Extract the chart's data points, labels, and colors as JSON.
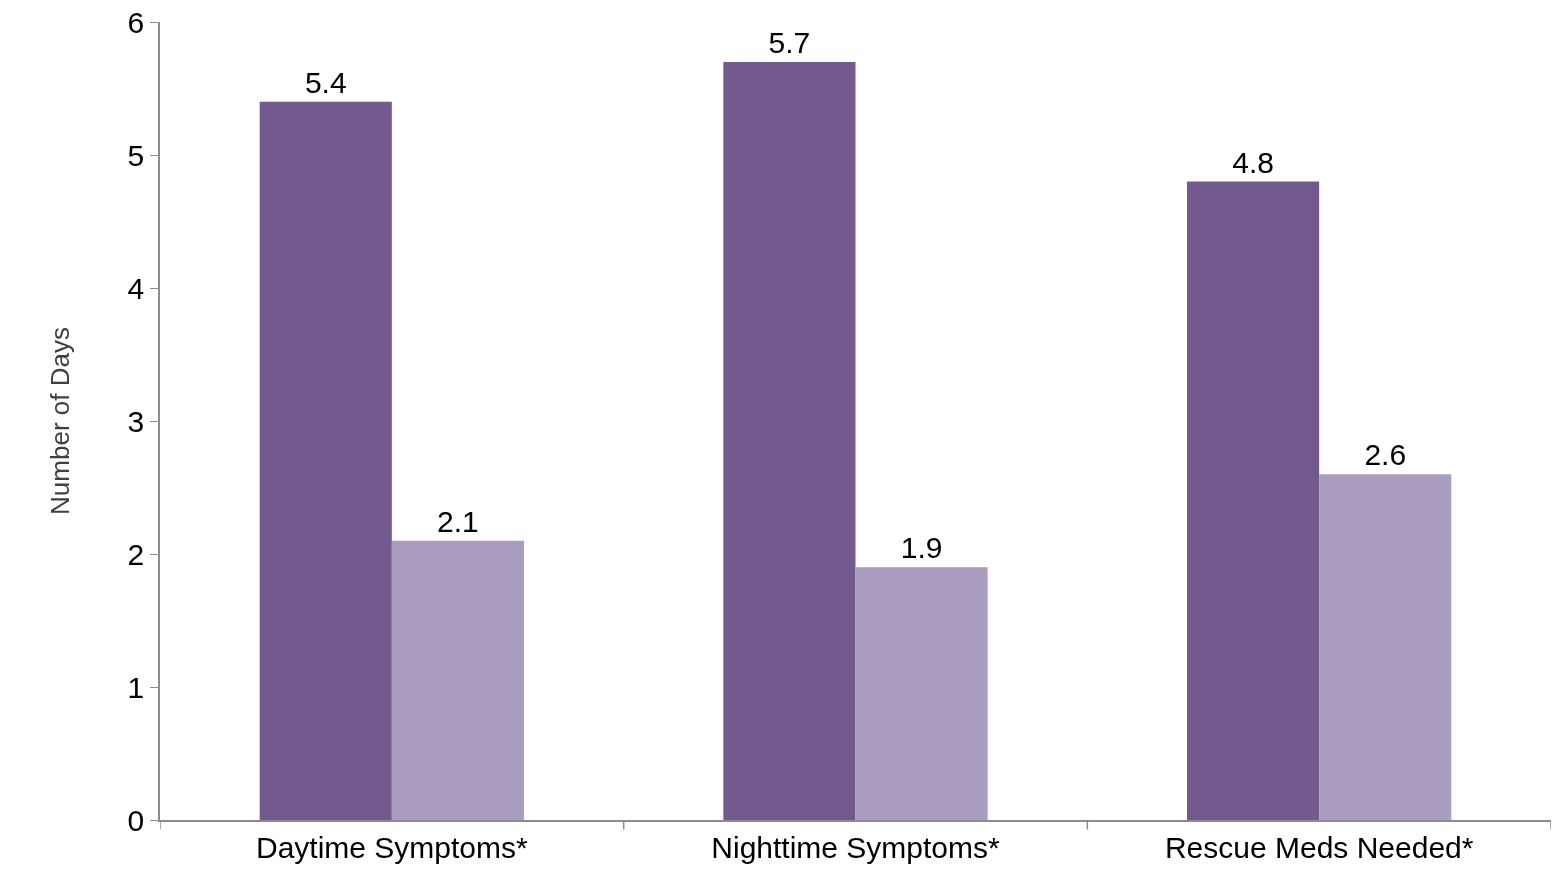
{
  "chart_data": {
    "type": "bar",
    "ylabel": "Number of Days",
    "categories": [
      "Daytime Symptoms*",
      "Nighttime Symptoms*",
      "Rescue Meds Needed*"
    ],
    "series": [
      {
        "color": "#725a8e",
        "values": [
          5.4,
          5.7,
          4.8
        ]
      },
      {
        "color": "#ab9dc0",
        "values": [
          2.1,
          1.9,
          2.6
        ]
      }
    ],
    "ylim": [
      0,
      6
    ],
    "yticks": [
      0,
      1,
      2,
      3,
      4,
      5,
      6
    ],
    "data_labels": true,
    "grid": false,
    "legend": false
  }
}
